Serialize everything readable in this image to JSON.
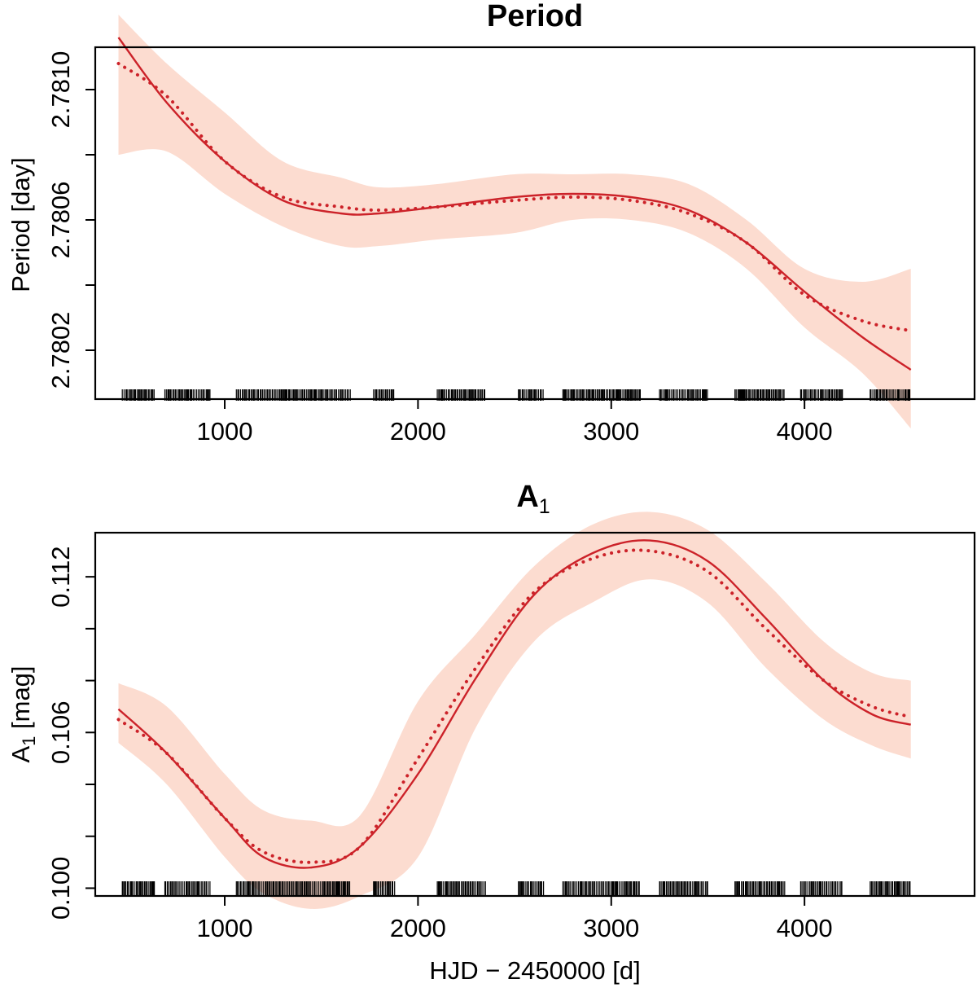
{
  "colors": {
    "line": "#cc2229",
    "band": "#fcdcd0",
    "axis": "#000000",
    "rug": "#000000"
  },
  "chart_data": [
    {
      "type": "line",
      "title": "Period",
      "title_subscript": "",
      "xlabel": "",
      "ylabel": "Period [day]",
      "xlim": [
        330,
        4880
      ],
      "ylim": [
        2.78005,
        2.78113
      ],
      "xticks": [
        1000,
        2000,
        3000,
        4000
      ],
      "xtick_labels": [
        "1000",
        "2000",
        "3000",
        "4000"
      ],
      "yticks": [
        2.7802,
        2.7804,
        2.7806,
        2.7808,
        2.781
      ],
      "ytick_labels": [
        "2.7802",
        "",
        "2.7806",
        "",
        "2.7810"
      ],
      "x": [
        450,
        700,
        1000,
        1300,
        1600,
        1800,
        2100,
        2500,
        2800,
        3100,
        3400,
        3700,
        4000,
        4300,
        4550
      ],
      "series": [
        {
          "style": "solid",
          "values": [
            2.78116,
            2.78096,
            2.78078,
            2.78066,
            2.78062,
            2.78062,
            2.78064,
            2.78067,
            2.78068,
            2.78067,
            2.78063,
            2.78053,
            2.78038,
            2.78024,
            2.78014
          ]
        },
        {
          "style": "dotted",
          "values": [
            2.78108,
            2.78098,
            2.78078,
            2.78067,
            2.78064,
            2.78063,
            2.78064,
            2.78066,
            2.78067,
            2.78066,
            2.78062,
            2.78053,
            2.78037,
            2.78029,
            2.78026
          ]
        }
      ],
      "band": {
        "upper": [
          2.78123,
          2.78108,
          2.78093,
          2.78078,
          2.78073,
          2.7807,
          2.78071,
          2.78074,
          2.78074,
          2.78074,
          2.78071,
          2.7806,
          2.78045,
          2.78041,
          2.78045
        ],
        "lower": [
          2.7808,
          2.78081,
          2.78068,
          2.78058,
          2.78052,
          2.78052,
          2.78054,
          2.78056,
          2.7806,
          2.7806,
          2.78056,
          2.78045,
          2.78027,
          2.78013,
          2.77996
        ]
      },
      "rug_segments": [
        [
          470,
          640
        ],
        [
          690,
          930
        ],
        [
          1060,
          1650
        ],
        [
          1770,
          1880
        ],
        [
          2100,
          2350
        ],
        [
          2520,
          2650
        ],
        [
          2750,
          3150
        ],
        [
          3250,
          3500
        ],
        [
          3640,
          3900
        ],
        [
          3980,
          4200
        ],
        [
          4340,
          4550
        ]
      ]
    },
    {
      "type": "line",
      "title": "A",
      "title_subscript": "1",
      "xlabel": "HJD − 2450000 [d]",
      "ylabel": "A",
      "ylabel_subscript": "1",
      "ylabel_suffix": " [mag]",
      "xlim": [
        330,
        4880
      ],
      "ylim": [
        0.0997,
        0.1137
      ],
      "xticks": [
        1000,
        2000,
        3000,
        4000
      ],
      "xtick_labels": [
        "1000",
        "2000",
        "3000",
        "4000"
      ],
      "yticks": [
        0.1,
        0.102,
        0.104,
        0.106,
        0.108,
        0.11,
        0.112
      ],
      "ytick_labels": [
        "0.100",
        "",
        "",
        "0.106",
        "",
        "",
        "0.112"
      ],
      "x": [
        450,
        700,
        1000,
        1200,
        1450,
        1700,
        2000,
        2300,
        2600,
        2900,
        3200,
        3500,
        3800,
        4100,
        4350,
        4550
      ],
      "series": [
        {
          "style": "solid",
          "values": [
            0.1069,
            0.1052,
            0.1027,
            0.1012,
            0.1008,
            0.1016,
            0.1044,
            0.1081,
            0.1113,
            0.1129,
            0.1134,
            0.1126,
            0.1104,
            0.108,
            0.1067,
            0.1063
          ]
        },
        {
          "style": "dotted",
          "values": [
            0.1065,
            0.1052,
            0.1027,
            0.1014,
            0.101,
            0.1016,
            0.105,
            0.1085,
            0.1114,
            0.1127,
            0.113,
            0.1122,
            0.11,
            0.108,
            0.107,
            0.1066
          ]
        }
      ],
      "band": {
        "upper": [
          0.1079,
          0.107,
          0.1044,
          0.103,
          0.1026,
          0.1028,
          0.1072,
          0.1098,
          0.1124,
          0.114,
          0.1145,
          0.1138,
          0.1118,
          0.1095,
          0.1083,
          0.108
        ],
        "lower": [
          0.1056,
          0.104,
          0.1012,
          0.0998,
          0.0992,
          0.0997,
          0.1012,
          0.1062,
          0.1095,
          0.111,
          0.1119,
          0.111,
          0.1085,
          0.1065,
          0.1055,
          0.105
        ]
      },
      "rug_segments": [
        [
          470,
          640
        ],
        [
          690,
          930
        ],
        [
          1060,
          1650
        ],
        [
          1770,
          1880
        ],
        [
          2100,
          2350
        ],
        [
          2520,
          2650
        ],
        [
          2750,
          3150
        ],
        [
          3250,
          3500
        ],
        [
          3640,
          3900
        ],
        [
          3980,
          4200
        ],
        [
          4340,
          4550
        ]
      ]
    }
  ]
}
